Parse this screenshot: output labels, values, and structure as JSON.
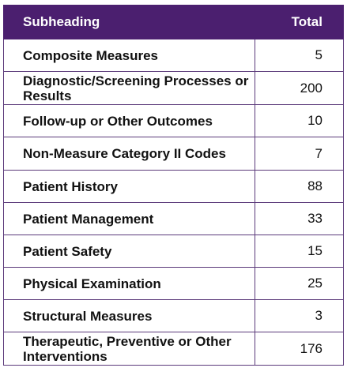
{
  "table": {
    "headers": {
      "subheading": "Subheading",
      "total": "Total"
    },
    "rows": [
      {
        "subheading": "Composite Measures",
        "total": "5"
      },
      {
        "subheading": "Diagnostic/Screening Processes or Results",
        "total": "200"
      },
      {
        "subheading": "Follow-up or Other Outcomes",
        "total": "10"
      },
      {
        "subheading": "Non-Measure Category II Codes",
        "total": "7"
      },
      {
        "subheading": "Patient History",
        "total": "88"
      },
      {
        "subheading": "Patient Management",
        "total": "33"
      },
      {
        "subheading": "Patient Safety",
        "total": "15"
      },
      {
        "subheading": "Physical Examination",
        "total": "25"
      },
      {
        "subheading": "Structural Measures",
        "total": "3"
      },
      {
        "subheading": "Therapeutic, Preventive or Other Interventions",
        "total": "176"
      }
    ],
    "colors": {
      "header_bg": "#4b1f6f",
      "border": "#5b3a7a"
    }
  }
}
